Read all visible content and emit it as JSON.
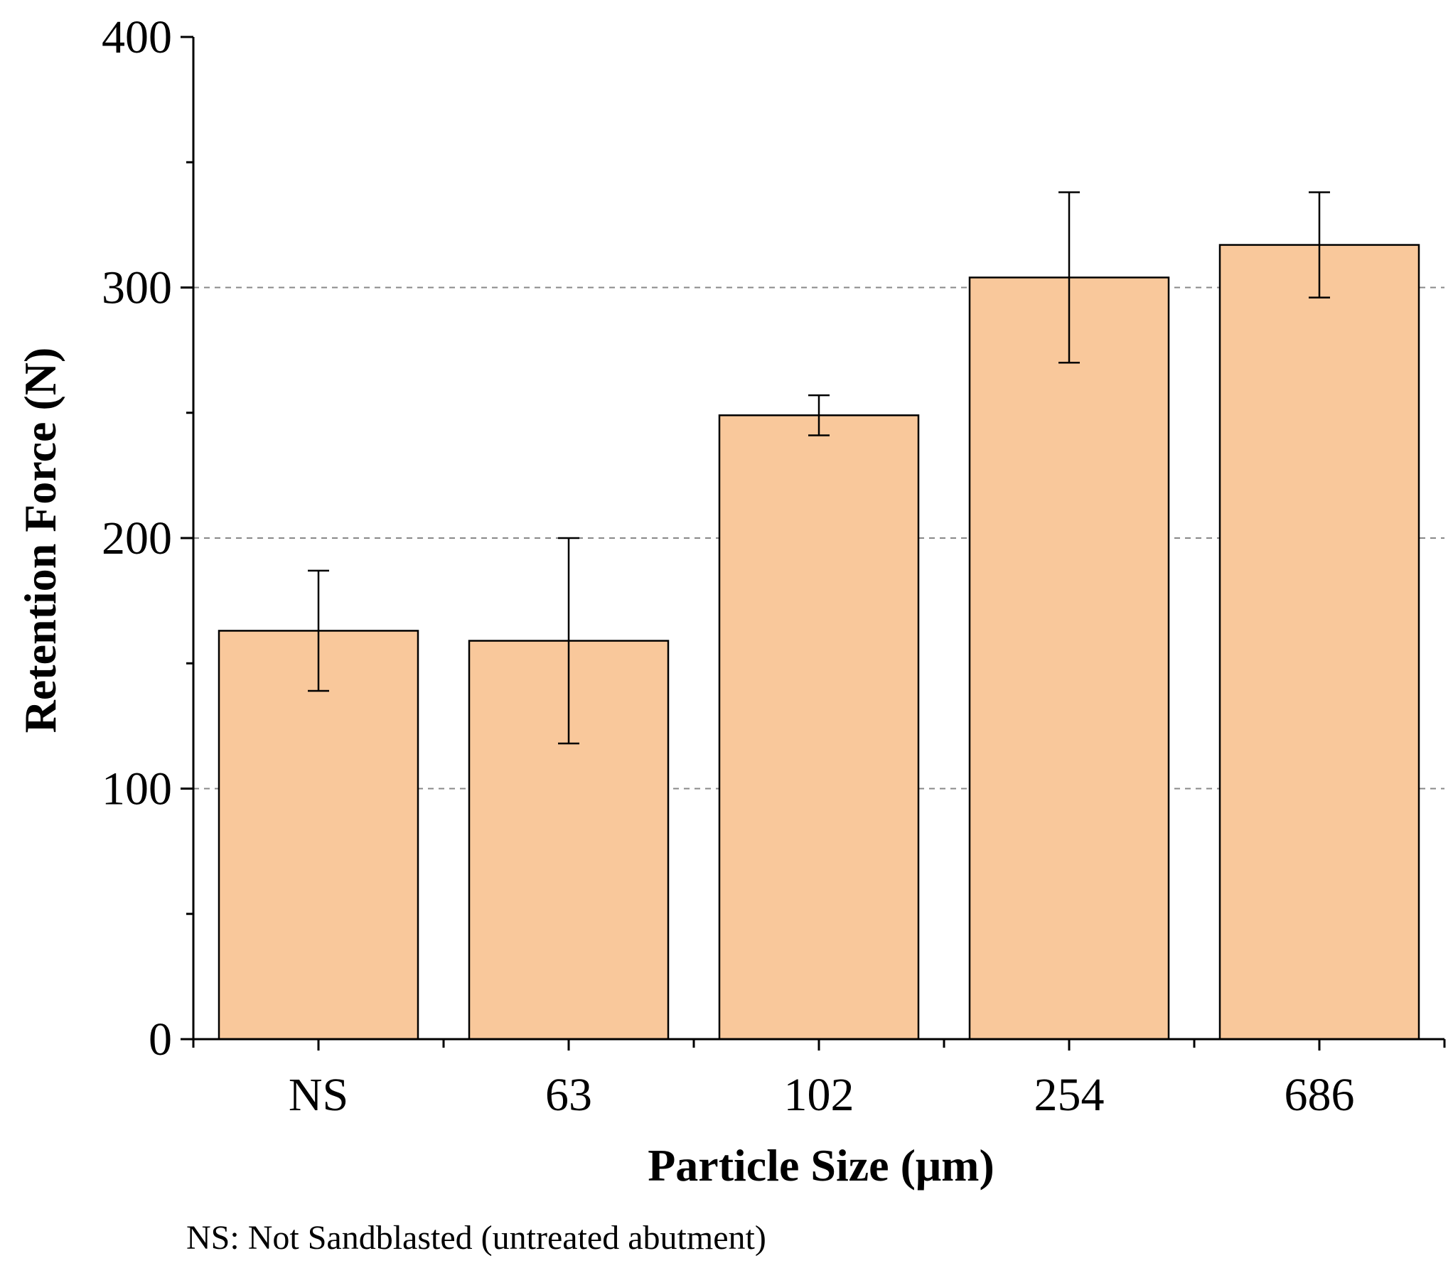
{
  "chart_data": {
    "type": "bar",
    "title": "",
    "xlabel": "Particle Size (μm)",
    "ylabel": "Retention Force (N)",
    "categories": [
      "NS",
      "63",
      "102",
      "254",
      "686"
    ],
    "values": [
      163,
      159,
      249,
      304,
      317
    ],
    "errors": [
      24,
      41,
      8,
      34,
      21
    ],
    "ylim": [
      0,
      400
    ],
    "yticks": [
      0,
      100,
      200,
      300,
      400
    ],
    "yticks_labels": [
      "0",
      "100",
      "200",
      "300",
      "400"
    ],
    "gridlines": [
      100,
      200,
      300
    ],
    "grid": "dashed horizontal",
    "legend": "none",
    "bar_color": "#F9C89B",
    "edge_color": "#000000",
    "grid_color": "#888888"
  },
  "footnote": "NS: Not Sandblasted (untreated abutment)"
}
